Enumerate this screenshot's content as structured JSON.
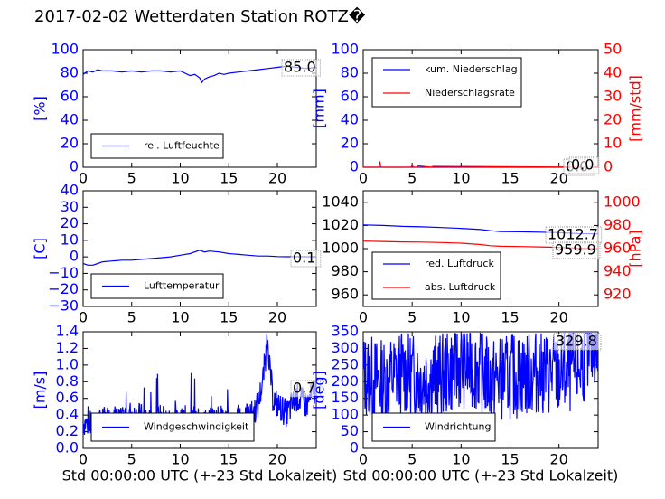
{
  "title": "2017-02-02 Wetterdaten Station ROTZ�",
  "xlabel": "Std 00:00:00 UTC (+-23 Std Lokalzeit)",
  "colors": {
    "blue": "#0000ff",
    "red": "#ff0000",
    "black": "#000000"
  },
  "chart_data": [
    {
      "type": "line",
      "ylabel": "[%]",
      "xlim": [
        0,
        24
      ],
      "ylim": [
        0,
        100
      ],
      "yticks": [
        "0",
        "20",
        "40",
        "60",
        "80",
        "100"
      ],
      "xticks": [
        "0",
        "5",
        "10",
        "15",
        "20"
      ],
      "annotation": "85.0",
      "legend_position": "lower-left",
      "series": [
        {
          "name": "rel. Luftfeuchte",
          "color": "#0000ff",
          "x": [
            0,
            0.5,
            1,
            1.5,
            2,
            3,
            4,
            5,
            6,
            7,
            8,
            9,
            10,
            10.5,
            11,
            11.5,
            12,
            12.2,
            12.5,
            13,
            13.5,
            14,
            14.5,
            15,
            16,
            17,
            18,
            19,
            20,
            21,
            22,
            23,
            24
          ],
          "y": [
            79,
            82,
            81,
            83,
            82,
            82,
            81,
            82,
            81,
            82,
            82,
            81,
            82,
            80,
            78,
            79,
            76,
            72,
            75,
            77,
            78,
            80,
            79,
            80,
            81,
            82,
            83,
            84,
            85,
            86,
            85,
            84,
            85
          ]
        }
      ]
    },
    {
      "type": "line",
      "ylabel": "[mm]",
      "ylabel_right": "[mm/std]",
      "xlim": [
        0,
        24
      ],
      "ylim": [
        0,
        100
      ],
      "ylim_right": [
        0,
        50
      ],
      "yticks": [
        "0",
        "20",
        "40",
        "60",
        "80",
        "100"
      ],
      "yticks_right": [
        "0",
        "10",
        "20",
        "30",
        "40",
        "50"
      ],
      "xticks": [
        "0",
        "5",
        "10",
        "15",
        "20"
      ],
      "annotations": [
        "0.0",
        "0.0"
      ],
      "legend_position": "top-left",
      "series": [
        {
          "name": "kum. Niederschlag",
          "color": "#0000ff",
          "x": [
            0,
            24
          ],
          "y": [
            0,
            0
          ]
        },
        {
          "name": "Niederschlagsrate",
          "color": "#ff0000",
          "x": [
            0,
            1.6,
            1.7,
            1.8,
            1.9,
            3,
            4.9,
            5,
            5.1,
            5.5,
            5.6,
            7,
            7.1,
            24
          ],
          "y": [
            0,
            0,
            2.5,
            0,
            0,
            0,
            0,
            1,
            0,
            0,
            0.6,
            0,
            0.4,
            0
          ]
        }
      ]
    },
    {
      "type": "line",
      "ylabel": "[C]",
      "xlim": [
        0,
        24
      ],
      "ylim": [
        -30,
        40
      ],
      "yticks": [
        "−30",
        "−20",
        "−10",
        "0",
        "10",
        "20",
        "30",
        "40"
      ],
      "xticks": [
        "0",
        "5",
        "10",
        "15",
        "20"
      ],
      "annotation": "0.1",
      "legend_position": "lower-left",
      "series": [
        {
          "name": "Lufttemperatur",
          "color": "#0000ff",
          "x": [
            0,
            0.5,
            1,
            1.5,
            2,
            3,
            4,
            5,
            6,
            7,
            8,
            9,
            10,
            11,
            12,
            12.5,
            13,
            14,
            15,
            16,
            17,
            18,
            19,
            20,
            21,
            22,
            23,
            24
          ],
          "y": [
            -4,
            -5,
            -5,
            -4,
            -3,
            -2.5,
            -2,
            -2,
            -1.5,
            -1,
            -0.5,
            0,
            1,
            2,
            4,
            3,
            3.5,
            3,
            2,
            1.5,
            1,
            0.5,
            0.5,
            0.2,
            0.1,
            0.2,
            0.1,
            0.1
          ]
        }
      ]
    },
    {
      "type": "line",
      "ylabel_right": "[hPa]",
      "xlim": [
        0,
        24
      ],
      "ylim": [
        950,
        1050
      ],
      "ylim_right": [
        910,
        1010
      ],
      "yticks": [
        "960",
        "980",
        "1000",
        "1020",
        "1040"
      ],
      "yticks_right": [
        "920",
        "940",
        "960",
        "980",
        "1000"
      ],
      "xticks": [
        "0",
        "5",
        "10",
        "15",
        "20"
      ],
      "annotations": [
        "1012.7",
        "959.9"
      ],
      "legend_position": "lower-left",
      "series": [
        {
          "name": "red. Luftdruck",
          "color": "#0000ff",
          "x": [
            0,
            2,
            4,
            6,
            8,
            10,
            12,
            13,
            14,
            16,
            18,
            20,
            22,
            24
          ],
          "y": [
            1020.5,
            1020,
            1019.2,
            1018.8,
            1018.2,
            1017.5,
            1016.5,
            1015.5,
            1014.8,
            1014.5,
            1014.2,
            1013.8,
            1013,
            1012.7
          ]
        },
        {
          "name": "abs. Luftdruck",
          "color": "#ff0000",
          "x": [
            0,
            2,
            4,
            6,
            8,
            10,
            12,
            13,
            14,
            16,
            18,
            20,
            22,
            24
          ],
          "y": [
            966.5,
            966.2,
            965.8,
            965.6,
            965.2,
            964.7,
            963.5,
            962.5,
            962,
            961.8,
            961.5,
            961.1,
            960.3,
            959.9
          ]
        }
      ]
    },
    {
      "type": "line",
      "ylabel": "[m/s]",
      "xlim": [
        0,
        24
      ],
      "ylim": [
        0,
        1.4
      ],
      "yticks": [
        "0.0",
        "0.2",
        "0.4",
        "0.6",
        "0.8",
        "1.0",
        "1.2",
        "1.4"
      ],
      "xticks": [
        "0",
        "5",
        "10",
        "15",
        "20"
      ],
      "xlabel": "Std 00:00:00 UTC (+-23 Std Lokalzeit)",
      "annotation": "0.7",
      "legend_position": "lower-left",
      "series": [
        {
          "name": "Windgeschwindigkeit",
          "color": "#0000ff",
          "noise_seed": 7,
          "x": [
            0,
            1,
            2,
            3,
            4,
            5,
            6,
            7,
            8,
            9,
            10,
            11,
            12,
            13,
            14,
            15,
            16,
            17,
            18,
            18.5,
            19,
            19.5,
            20,
            21,
            22,
            23,
            24
          ],
          "y": [
            0.3,
            0.25,
            0.3,
            0.35,
            0.3,
            0.4,
            0.35,
            0.3,
            0.35,
            0.3,
            0.3,
            0.35,
            0.3,
            0.3,
            0.35,
            0.3,
            0.3,
            0.35,
            0.5,
            0.8,
            1.3,
            0.6,
            0.5,
            0.4,
            0.6,
            0.5,
            0.7
          ]
        }
      ]
    },
    {
      "type": "line",
      "ylabel": "[deg]",
      "xlim": [
        0,
        24
      ],
      "ylim": [
        0,
        350
      ],
      "yticks": [
        "0",
        "50",
        "100",
        "150",
        "200",
        "250",
        "300",
        "350"
      ],
      "xticks": [
        "0",
        "5",
        "10",
        "15",
        "20"
      ],
      "xlabel": "Std 00:00:00 UTC (+-23 Std Lokalzeit)",
      "annotation": "329.8",
      "legend_position": "lower-left",
      "series": [
        {
          "name": "Windrichtung",
          "color": "#0000ff",
          "noise_seed": 13,
          "x": [
            0,
            2,
            4,
            6,
            8,
            10,
            12,
            13,
            14,
            16,
            18,
            20,
            22,
            24
          ],
          "y": [
            220,
            200,
            230,
            210,
            220,
            250,
            240,
            200,
            210,
            220,
            230,
            220,
            240,
            329.8
          ]
        }
      ]
    }
  ]
}
